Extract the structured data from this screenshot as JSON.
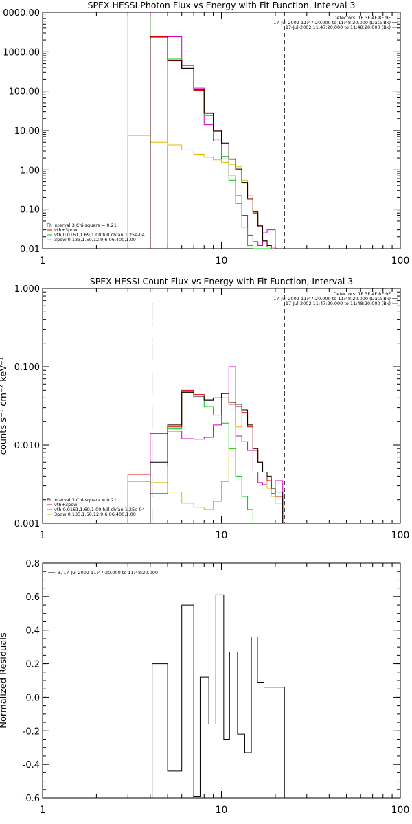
{
  "colors": {
    "black": "#000000",
    "red": "#e00000",
    "green": "#00cc00",
    "magenta": "#cc00cc",
    "yellow": "#ddbb00"
  },
  "chart_data": [
    {
      "type": "line",
      "title": "SPEX HESSI Photon Flux vs Energy with Fit Function, Interval 3",
      "xscale": "log",
      "yscale": "log",
      "xlim": [
        1,
        100
      ],
      "ylim": [
        0.01,
        10000
      ],
      "xticks": [
        "1",
        "10",
        "100"
      ],
      "yticks": [
        "0000.00",
        "1000.00",
        "100.00",
        "10.00",
        "1.00",
        "0.10",
        "0.01"
      ],
      "info_lines": [
        "Detectors: 1F 3F 4F 8F 9F",
        "17-Jul-2002 11:47:20.000 to 11:48:20.000 (Data-Bk)",
        "17-Jul-2002 11:47:20.000 to 11:48:20.000 (Bk)"
      ],
      "legend_lines": [
        "Fit Interval 3   Chi-square = 0.21",
        "vth+3pow",
        "vth 0.0161,1.69,1.00  full chfan 1.25e-04",
        "3pow 0.133,1.50,12.9,6.06,400,1.00"
      ],
      "edges": [
        3,
        4,
        5,
        6,
        7,
        8,
        9,
        10,
        11,
        12,
        13,
        14,
        15,
        16,
        17,
        18,
        19,
        20,
        22
      ],
      "series": [
        {
          "key": "data",
          "color": "black",
          "values": [
            null,
            2500,
            600,
            380,
            110,
            28,
            10,
            4.8,
            1.9,
            1.05,
            0.48,
            0.19,
            0.085,
            0.038,
            0.016,
            0.012,
            0.011,
            0.01
          ]
        },
        {
          "key": "total",
          "color": "red",
          "values": [
            null,
            2400,
            590,
            370,
            105,
            27,
            9.5,
            4.6,
            1.85,
            1.0,
            0.46,
            0.18,
            0.08,
            0.036,
            0.015,
            0.011,
            0.01,
            0.01
          ]
        },
        {
          "key": "thermal",
          "color": "green",
          "values": [
            8000,
            2300,
            650,
            380,
            105,
            24,
            6,
            2.2,
            0.55,
            0.14,
            0.035,
            0.012,
            0.01,
            0.01,
            0.01,
            0.01,
            0.01,
            0.01
          ]
        },
        {
          "key": "powerlaw",
          "color": "yellow",
          "values": [
            7.5,
            5,
            4.3,
            3.2,
            2.5,
            2.1,
            1.8,
            1.55,
            1.35,
            1.2,
            0.55,
            0.22,
            0.09,
            0.04,
            0.016,
            0.012,
            0.011,
            0.01
          ]
        },
        {
          "key": "background",
          "color": "magenta",
          "values": [
            null,
            null,
            2400,
            450,
            120,
            14,
            5.4,
            1.9,
            0.7,
            0.22,
            0.07,
            0.022,
            0.015,
            0.012,
            0.025,
            0.03,
            0.03,
            0.01
          ]
        }
      ],
      "vlines": [
        {
          "x": 4,
          "style": "solid",
          "color": "magenta"
        },
        {
          "x": 22.5,
          "style": "dashed",
          "color": "black"
        }
      ]
    },
    {
      "type": "line",
      "title": "SPEX HESSI Count Flux vs Energy with Fit Function, Interval 3",
      "xscale": "log",
      "yscale": "log",
      "xlim": [
        1,
        100
      ],
      "ylim": [
        0.001,
        1
      ],
      "xticks": [
        "1",
        "10",
        "100"
      ],
      "yticks": [
        "1.000",
        "0.100",
        "0.010",
        "0.001"
      ],
      "ylabel": "counts s⁻¹ cm⁻² keV⁻¹",
      "info_lines": [
        "Detectors: 1F 3F 4F 8F 9F",
        "17-Jul-2002 11:47:20.000 to 11:48:20.000 (Data-Bk)",
        "17-Jul-2002 11:47:20.000 to 11:48:20.000 (Bk)"
      ],
      "legend_lines": [
        "Fit Interval 3   Chi-square = 0.21",
        "vth+3pow",
        "vth 0.0161,1.69,1.00  full chfan 1.25e-04",
        "3pow 0.133,1.50,12.9,6.06,400,1.00"
      ],
      "edges": [
        3,
        4,
        5,
        6,
        7,
        8,
        9,
        10,
        11,
        12,
        13,
        14,
        15,
        16,
        17,
        18,
        19,
        20,
        22
      ],
      "series": [
        {
          "key": "data",
          "color": "black",
          "values": [
            null,
            0.006,
            0.018,
            0.047,
            0.042,
            0.037,
            0.04,
            0.046,
            0.035,
            0.033,
            0.028,
            0.018,
            0.009,
            0.006,
            0.0045,
            0.004,
            0.0028,
            0.0025
          ]
        },
        {
          "key": "total",
          "color": "red",
          "values": [
            0.0042,
            0.0054,
            0.017,
            0.05,
            0.044,
            0.038,
            0.04,
            0.04,
            0.033,
            0.031,
            0.026,
            0.017,
            0.0085,
            0.006,
            0.0045,
            0.0035,
            0.0028,
            0.0022
          ]
        },
        {
          "key": "thermal",
          "color": "green",
          "values": [
            null,
            0.0024,
            0.016,
            0.048,
            0.04,
            0.031,
            0.024,
            0.019,
            0.009,
            0.004,
            0.0022,
            0.0015,
            0.001,
            0.001,
            0.001,
            0.001,
            0.001,
            0.001
          ]
        },
        {
          "key": "powerlaw",
          "color": "yellow",
          "values": [
            0.0034,
            0.0033,
            0.0025,
            0.0018,
            0.0016,
            0.0015,
            0.0019,
            0.0034,
            0.009,
            0.017,
            0.024,
            0.018,
            0.0085,
            0.006,
            0.0045,
            0.0028,
            0.0022,
            0.0018
          ]
        },
        {
          "key": "background",
          "color": "magenta",
          "values": [
            null,
            0.014,
            0.015,
            0.012,
            0.0118,
            0.0125,
            0.018,
            0.045,
            0.1,
            0.013,
            0.011,
            0.0085,
            0.0045,
            0.0033,
            0.0031,
            0.0028,
            0.0024,
            0.0035
          ]
        }
      ],
      "vlines": [
        {
          "x": 4.1,
          "style": "dotted",
          "color": "black"
        },
        {
          "x": 22.5,
          "style": "dashed",
          "color": "black"
        }
      ]
    },
    {
      "type": "line",
      "title": "",
      "xscale": "log",
      "yscale": "linear",
      "xlim": [
        1,
        100
      ],
      "ylim": [
        -0.6,
        0.8
      ],
      "xticks": [
        "1",
        "10",
        "100"
      ],
      "yticks": [
        "0.8",
        "0.6",
        "0.4",
        "0.2",
        "0.0",
        "-0.2",
        "-0.4",
        "-0.6"
      ],
      "ylabel": "Normalized Residuals",
      "legend_lines": [
        "3, 17-Jul-2002 11:47:20.000 to 11:48:20.000"
      ],
      "edges": [
        4.1,
        5,
        6,
        7,
        7.6,
        8.5,
        9.3,
        10.3,
        11.1,
        12.3,
        13.5,
        14.7,
        15.9,
        17.3,
        18.5,
        19.8,
        21.3,
        22.5
      ],
      "series": [
        {
          "key": "residuals",
          "color": "black",
          "values": [
            0.2,
            -0.44,
            0.55,
            -0.59,
            0.12,
            -0.16,
            0.61,
            -0.25,
            0.27,
            -0.22,
            -0.33,
            0.36,
            0.09,
            0.06,
            0.06,
            0.06,
            0.06
          ]
        }
      ]
    }
  ]
}
